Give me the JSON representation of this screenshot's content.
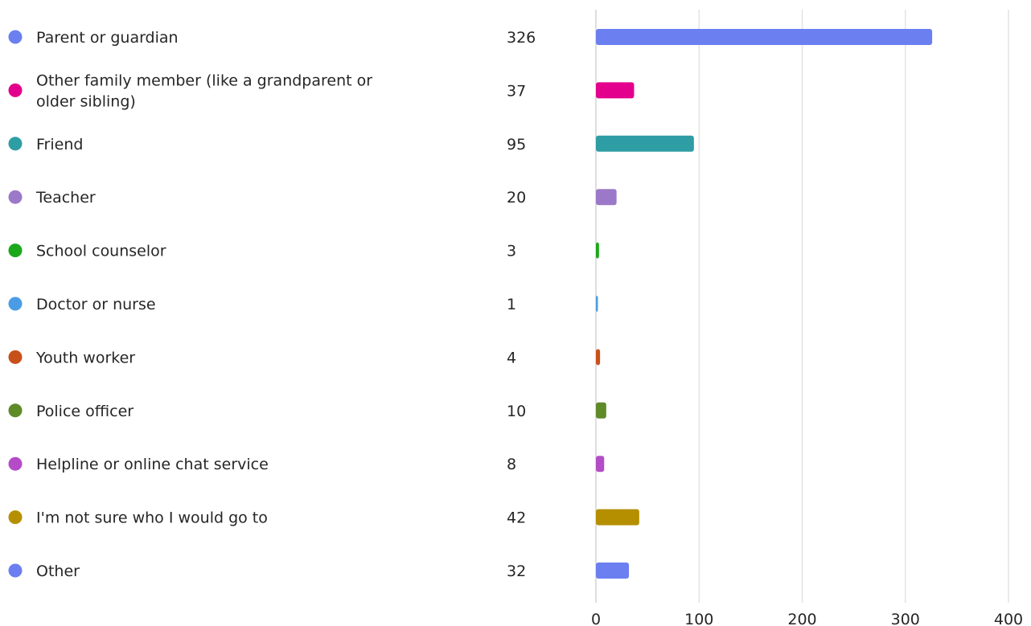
{
  "chart_data": {
    "type": "bar",
    "orientation": "horizontal",
    "title": "",
    "xlabel": "",
    "ylabel": "",
    "xlim": [
      0,
      400
    ],
    "x_ticks": [
      0,
      100,
      200,
      300,
      400
    ],
    "grid": true,
    "legend": "left",
    "categories": [
      "Parent or guardian",
      "Other family member (like a grandparent or older sibling)",
      "Friend",
      "Teacher",
      "School counselor",
      "Doctor or nurse",
      "Youth worker",
      "Police officer",
      "Helpline or online chat service",
      "I'm not sure who I would go to",
      "Other"
    ],
    "values": [
      326,
      37,
      95,
      20,
      3,
      1,
      4,
      10,
      8,
      42,
      32
    ],
    "colors": [
      "#6b7ff0",
      "#e3008c",
      "#2e9da4",
      "#9c78c8",
      "#1ba81b",
      "#4a9de4",
      "#c8501a",
      "#5e8a28",
      "#b44cc8",
      "#b58f00",
      "#6b7ff0"
    ]
  }
}
